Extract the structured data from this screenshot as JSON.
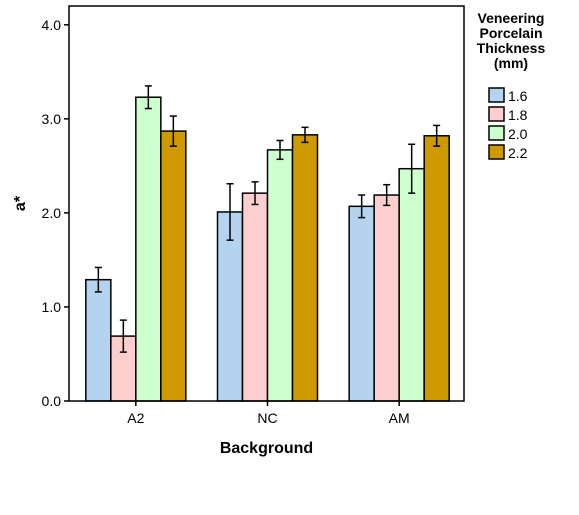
{
  "chart_data": {
    "type": "bar",
    "xlabel": "Background",
    "ylabel": "a*",
    "ylim": [
      0,
      4.2
    ],
    "yticks": [
      0.0,
      1.0,
      2.0,
      3.0,
      4.0
    ],
    "ytick_labels": [
      "0.0",
      "1.0",
      "2.0",
      "3.0",
      "4.0"
    ],
    "categories": [
      "A2",
      "NC",
      "AM"
    ],
    "grid": false,
    "legend": {
      "title_lines": [
        "Veneering",
        "Porcelain",
        "Thickness",
        "(mm)"
      ],
      "position": "right"
    },
    "series": [
      {
        "name": "1.6",
        "color": "#b4d3ef",
        "values": [
          1.29,
          2.01,
          2.07
        ],
        "err": [
          0.13,
          0.3,
          0.12
        ]
      },
      {
        "name": "1.8",
        "color": "#fdcece",
        "values": [
          0.69,
          2.21,
          2.19
        ],
        "err": [
          0.17,
          0.12,
          0.11
        ]
      },
      {
        "name": "2.0",
        "color": "#ceffce",
        "values": [
          3.23,
          2.67,
          2.47
        ],
        "err": [
          0.12,
          0.1,
          0.26
        ]
      },
      {
        "name": "2.2",
        "color": "#cf9900",
        "values": [
          2.87,
          2.83,
          2.82
        ],
        "err": [
          0.16,
          0.08,
          0.11
        ]
      }
    ]
  }
}
